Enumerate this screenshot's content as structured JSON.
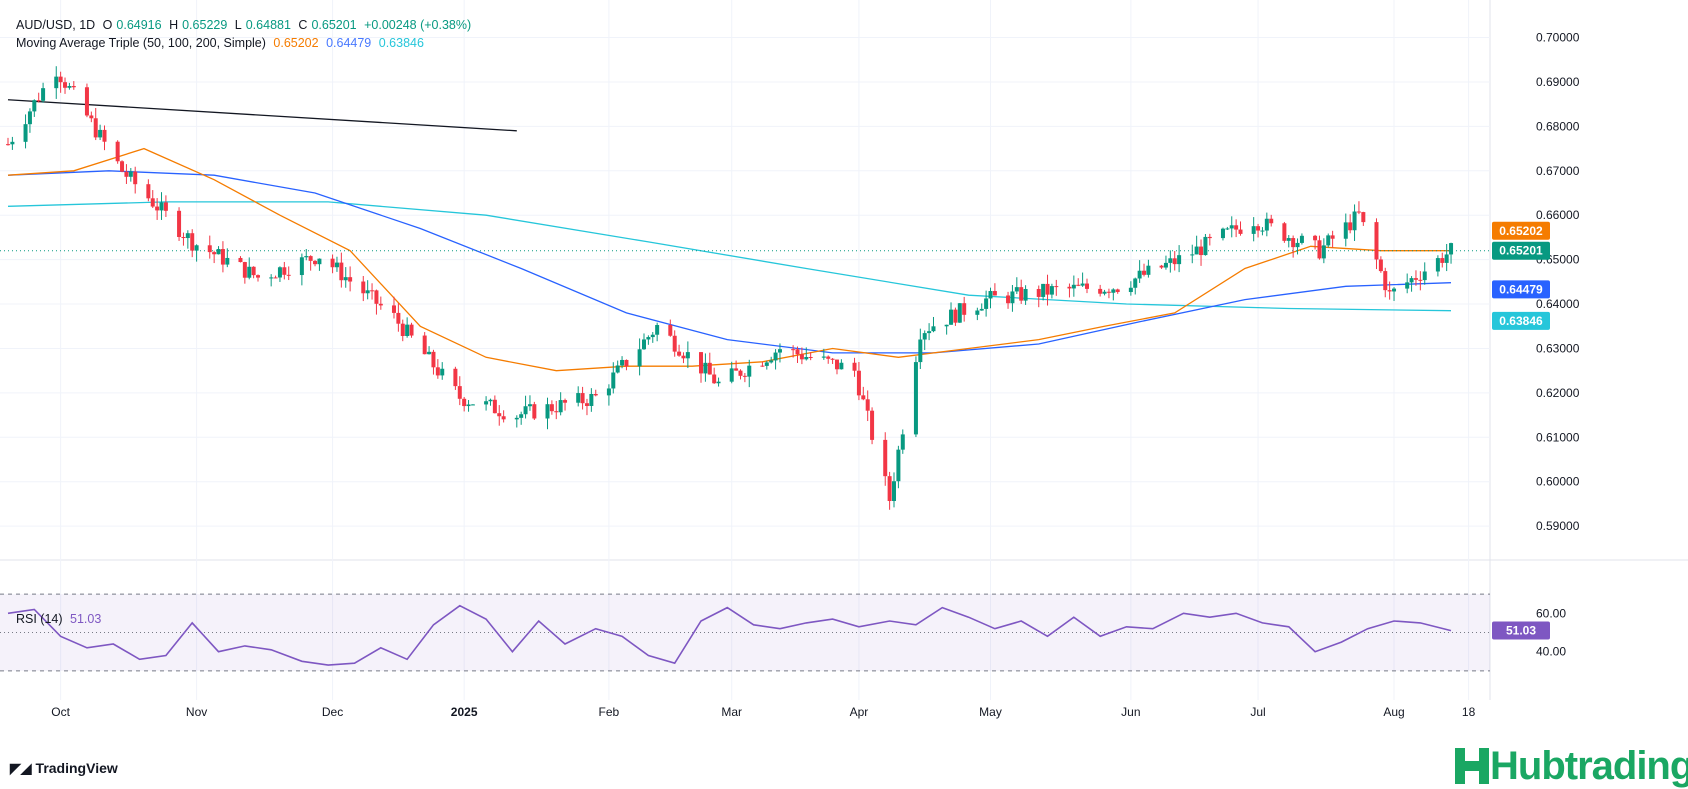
{
  "header": {
    "symbol": "AUD/USD, 1D",
    "open_label": "O",
    "open": "0.64916",
    "high_label": "H",
    "high": "0.65229",
    "low_label": "L",
    "low": "0.64881",
    "close_label": "C",
    "close": "0.65201",
    "change": "+0.00248 (+0.38%)",
    "ma_label": "Moving Average Triple (50, 100, 200, Simple)",
    "ma50": "0.65202",
    "ma100": "0.64479",
    "ma200": "0.63846"
  },
  "rsi": {
    "label": "RSI (14)",
    "value": "51.03",
    "ticks": [
      "60.00",
      "40.00"
    ],
    "upper": 70,
    "lower": 30,
    "mid": 50
  },
  "price_badges": [
    {
      "label": "0.65202",
      "value": 0.65202,
      "color": "#f57c00"
    },
    {
      "label": "0.65201",
      "value": 0.65201,
      "color": "#089981"
    },
    {
      "label": "0.64479",
      "value": 0.64479,
      "color": "#2962ff"
    },
    {
      "label": "0.63846",
      "value": 0.63846,
      "color": "#26c6da"
    }
  ],
  "rsi_badge": "51.03",
  "branding": {
    "tradingview": "TradingView",
    "hub": "Hubtrading"
  },
  "colors": {
    "up": "#089981",
    "down": "#f23645",
    "ma50": "#f57c00",
    "ma100": "#2962ff",
    "ma200": "#26c6da",
    "rsi": "#7e57c2",
    "trendline": "#131722"
  },
  "chart_data": {
    "type": "candlestick",
    "title": "AUD/USD, 1D",
    "y_ticks": [
      "0.70000",
      "0.69000",
      "0.68000",
      "0.67000",
      "0.66000",
      "0.65000",
      "0.64000",
      "0.63000",
      "0.62000",
      "0.61000",
      "0.60000",
      "0.59000"
    ],
    "ylim": [
      0.5835,
      0.7035
    ],
    "x_ticks": [
      {
        "label": "Oct",
        "date": "2024-10-01"
      },
      {
        "label": "Nov",
        "date": "2024-11-01"
      },
      {
        "label": "Dec",
        "date": "2024-12-02"
      },
      {
        "label": "2025",
        "date": "2025-01-01"
      },
      {
        "label": "Feb",
        "date": "2025-02-03"
      },
      {
        "label": "Mar",
        "date": "2025-03-03"
      },
      {
        "label": "Apr",
        "date": "2025-04-01"
      },
      {
        "label": "May",
        "date": "2025-05-01"
      },
      {
        "label": "Jun",
        "date": "2025-06-02"
      },
      {
        "label": "Jul",
        "date": "2025-07-01"
      },
      {
        "label": "Aug",
        "date": "2025-08-01"
      },
      {
        "label": "18",
        "date": "2025-08-18"
      }
    ],
    "series": [
      {
        "name": "Close",
        "dates": [
          "2024-09-19",
          "2024-09-30",
          "2024-10-15",
          "2024-10-31",
          "2024-11-15",
          "2024-11-29",
          "2024-12-16",
          "2024-12-31",
          "2025-01-13",
          "2025-01-31",
          "2025-02-14",
          "2025-02-28",
          "2025-03-14",
          "2025-03-31",
          "2025-04-08",
          "2025-04-15",
          "2025-04-30",
          "2025-05-15",
          "2025-05-30",
          "2025-06-13",
          "2025-06-30",
          "2025-07-15",
          "2025-07-24",
          "2025-07-31",
          "2025-08-14"
        ],
        "values": [
          0.676,
          0.693,
          0.67,
          0.654,
          0.646,
          0.651,
          0.637,
          0.619,
          0.615,
          0.619,
          0.635,
          0.622,
          0.63,
          0.625,
          0.596,
          0.634,
          0.641,
          0.643,
          0.644,
          0.65,
          0.659,
          0.652,
          0.66,
          0.642,
          0.652
        ]
      },
      {
        "name": "50",
        "values": [
          0.669,
          0.67,
          0.675,
          0.668,
          0.66,
          0.652,
          0.635,
          0.628,
          0.625,
          0.626,
          0.626,
          0.627,
          0.63,
          0.628,
          0.63,
          0.632,
          0.635,
          0.638,
          0.648,
          0.653,
          0.652,
          0.652
        ]
      },
      {
        "name": "100",
        "values": [
          0.669,
          0.67,
          0.669,
          0.665,
          0.657,
          0.648,
          0.638,
          0.632,
          0.629,
          0.629,
          0.631,
          0.636,
          0.641,
          0.644,
          0.6448
        ]
      },
      {
        "name": "200",
        "values": [
          0.662,
          0.663,
          0.663,
          0.66,
          0.654,
          0.648,
          0.642,
          0.64,
          0.639,
          0.6385
        ]
      }
    ],
    "trendline": {
      "from": {
        "date": "2024-09-19",
        "value": 0.686
      },
      "to": {
        "date": "2025-01-13",
        "value": 0.679
      }
    },
    "rsi_values": [
      60,
      62,
      48,
      42,
      44,
      36,
      38,
      55,
      40,
      43,
      41,
      35,
      33,
      34,
      42,
      36,
      54,
      64,
      57,
      40,
      56,
      44,
      52,
      48,
      38,
      34,
      56,
      63,
      54,
      52,
      55,
      57,
      53,
      56,
      54,
      63,
      58,
      52,
      56,
      48,
      58,
      48,
      53,
      52,
      60,
      58,
      60,
      55,
      53,
      40,
      45,
      52,
      56,
      55,
      51
    ]
  }
}
